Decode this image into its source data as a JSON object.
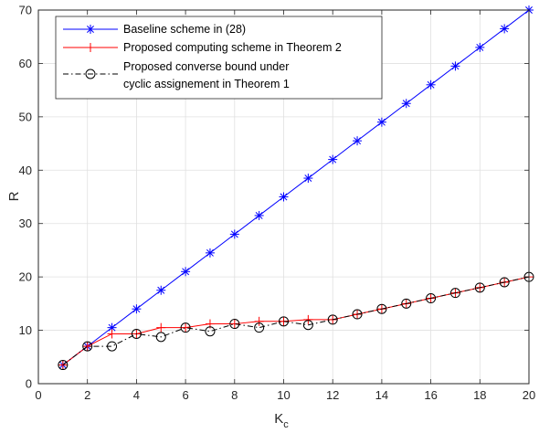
{
  "chart_data": {
    "type": "line",
    "xlabel": "K",
    "xlabel_sub": "c",
    "ylabel": "R",
    "xlim": [
      0,
      20
    ],
    "ylim": [
      0,
      70
    ],
    "xticks": [
      0,
      2,
      4,
      6,
      8,
      10,
      12,
      14,
      16,
      18,
      20
    ],
    "yticks": [
      0,
      10,
      20,
      30,
      40,
      50,
      60,
      70
    ],
    "grid": true,
    "legend_position": "top-left",
    "series": [
      {
        "name": "Baseline scheme in (28)",
        "color": "#0000ff",
        "marker": "asterisk",
        "line_style": "solid",
        "x": [
          1,
          2,
          3,
          4,
          5,
          6,
          7,
          8,
          9,
          10,
          11,
          12,
          13,
          14,
          15,
          16,
          17,
          18,
          19,
          20
        ],
        "y": [
          3.5,
          7,
          10.5,
          14,
          17.5,
          21,
          24.5,
          28,
          31.5,
          35,
          38.5,
          42,
          45.5,
          49,
          52.5,
          56,
          59.5,
          63,
          66.5,
          70
        ]
      },
      {
        "name": "Proposed computing scheme in Theorem 2",
        "color": "#ff0000",
        "marker": "plus",
        "line_style": "solid",
        "x": [
          1,
          2,
          3,
          4,
          5,
          6,
          7,
          8,
          9,
          10,
          11,
          12,
          13,
          14,
          15,
          16,
          17,
          18,
          19,
          20
        ],
        "y": [
          3.5,
          7,
          9.33,
          9.33,
          10.5,
          10.5,
          11.2,
          11.2,
          11.67,
          11.67,
          12,
          12,
          13,
          14,
          15,
          16,
          17,
          18,
          19,
          20
        ]
      },
      {
        "name_lines": [
          "Proposed converse bound under",
          "cyclic assignement in Theorem 1"
        ],
        "color": "#000000",
        "marker": "circle",
        "line_style": "dashdot",
        "x": [
          1,
          2,
          3,
          4,
          5,
          6,
          7,
          8,
          9,
          10,
          11,
          12,
          13,
          14,
          15,
          16,
          17,
          18,
          19,
          20
        ],
        "y": [
          3.5,
          7,
          7,
          9.33,
          8.75,
          10.5,
          9.8,
          11.2,
          10.5,
          11.67,
          11,
          12,
          13,
          14,
          15,
          16,
          17,
          18,
          19,
          20
        ]
      }
    ]
  }
}
